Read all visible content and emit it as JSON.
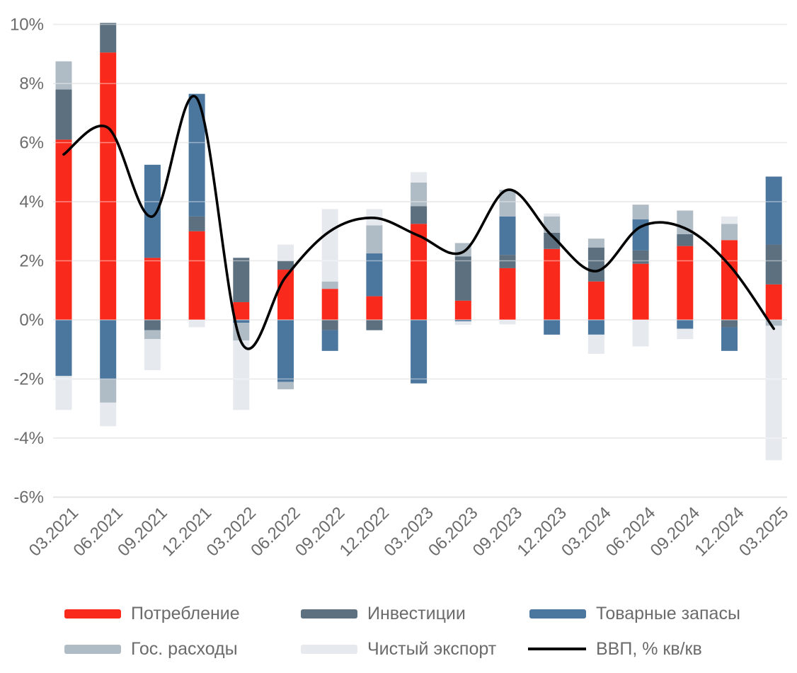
{
  "page": {
    "background": "#ffffff"
  },
  "style": {
    "grid_color": "#d9d9d9",
    "bottom_grid_color": "#c9c9c9",
    "axis_text_color": "#6b6b6b",
    "legend_text_color": "#6b6b6b",
    "line_color": "#000000"
  },
  "chart_data": {
    "type": "bar",
    "subtype": "stacked-bars-with-smoothed-line-overlay",
    "title": "",
    "xlabel": "",
    "ylabel": "",
    "grid": true,
    "legend_position": "bottom",
    "ylim": [
      -6,
      10
    ],
    "ytick_values": [
      10,
      8,
      6,
      4,
      2,
      0,
      -2,
      -4,
      -6
    ],
    "ytick_labels": [
      "10%",
      "8%",
      "6%",
      "4%",
      "2%",
      "0%",
      "-2%",
      "-4%",
      "-6%"
    ],
    "categories": [
      "03.2021",
      "06.2021",
      "09.2021",
      "12.2021",
      "03.2022",
      "06.2022",
      "09.2022",
      "12.2022",
      "03.2023",
      "06.2023",
      "09.2023",
      "12.2023",
      "03.2024",
      "06.2024",
      "09.2024",
      "12.2024",
      "03.2025"
    ],
    "series": [
      {
        "name": "Потребление",
        "color": "#f92a1c",
        "values": [
          6.1,
          9.05,
          2.1,
          3.0,
          0.6,
          1.7,
          1.05,
          0.8,
          3.25,
          0.65,
          1.75,
          2.4,
          1.3,
          1.9,
          2.5,
          2.7,
          1.2
        ]
      },
      {
        "name": "Инвестиции",
        "color": "#5d7080",
        "values": [
          1.7,
          1.0,
          -0.35,
          0.5,
          1.5,
          0.3,
          -0.35,
          -0.35,
          0.6,
          1.5,
          0.45,
          0.55,
          1.15,
          0.45,
          0.4,
          -0.25,
          1.35
        ]
      },
      {
        "name": "Товарные запасы",
        "color": "#4b769d",
        "values": [
          -1.9,
          -2.0,
          3.15,
          4.15,
          -0.1,
          -2.1,
          -0.7,
          1.45,
          -2.15,
          -0.05,
          1.3,
          -0.5,
          -0.5,
          1.05,
          -0.3,
          -0.8,
          2.3
        ]
      },
      {
        "name": "Гос. расходы",
        "color": "#afbbc5",
        "values": [
          0.95,
          -0.8,
          -0.3,
          0,
          -0.6,
          -0.25,
          0.25,
          0.95,
          0.8,
          0.45,
          0.9,
          0.55,
          0.3,
          0.5,
          0.8,
          0.55,
          -0.2
        ]
      },
      {
        "name": "Чистый экспорт",
        "color": "#e6eaee",
        "values": [
          -1.15,
          -0.8,
          -1.05,
          -0.25,
          -2.35,
          0.55,
          2.45,
          0.55,
          0.35,
          -0.12,
          -0.15,
          0.1,
          -0.65,
          -0.9,
          -0.35,
          0.25,
          -4.55
        ]
      }
    ],
    "line_series": {
      "name": "ВВП, % кв/кв",
      "color": "#000000",
      "values": [
        5.6,
        6.5,
        3.5,
        7.5,
        -0.75,
        1.45,
        3.0,
        3.45,
        2.85,
        2.3,
        4.4,
        2.85,
        1.65,
        3.15,
        3.1,
        1.85,
        -0.3
      ]
    }
  }
}
